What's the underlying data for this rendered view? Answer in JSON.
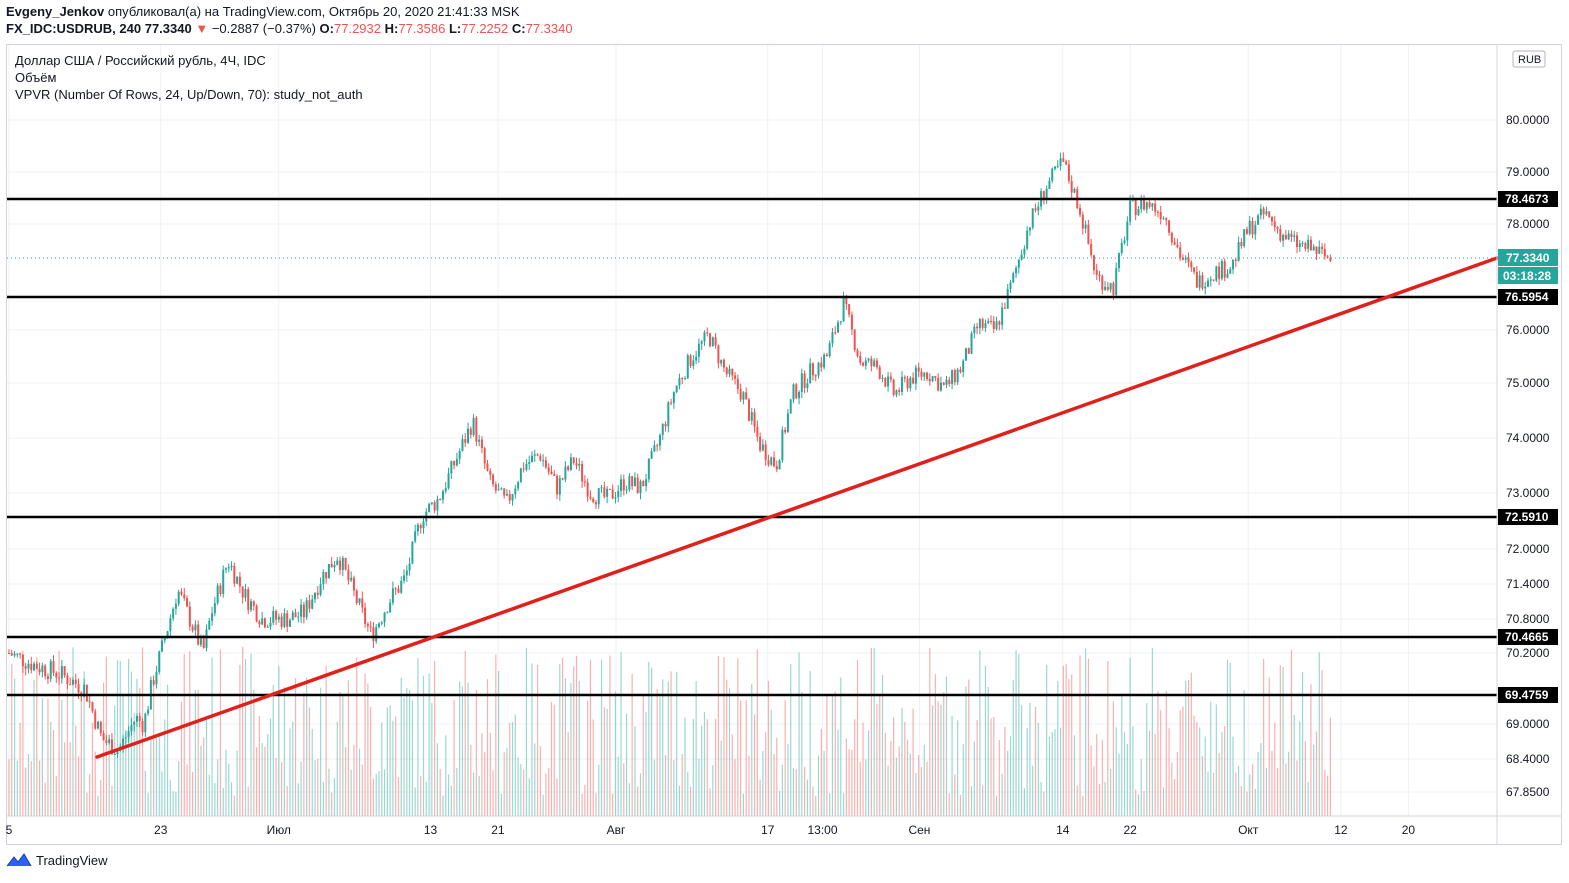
{
  "header": {
    "author": "Evgeny_Jenkov",
    "published": "опубликовал(а) на TradingView.com, Октябрь 20, 2020 21:41:33 MSK"
  },
  "ohlc": {
    "symbol": "FX_IDC:USDRUB, 240",
    "last": "77.3340",
    "change": "−0.2887 (−0.37%)",
    "o_label": "O:",
    "o": "77.2932",
    "h_label": "H:",
    "h": "77.3586",
    "l_label": "L:",
    "l": "77.2252",
    "c_label": "C:",
    "c": "77.3340"
  },
  "legend": {
    "title": "Доллар США / Российский рубль, 4Ч, IDC",
    "volume": "Объём",
    "vpvr": "VPVR (Number Of Rows, 24, Up/Down, 70): study_not_auth"
  },
  "footer": {
    "brand": "TradingView"
  },
  "colors": {
    "up": "#26a69a",
    "down": "#ef5350",
    "trend": "#e0201b",
    "level": "#000000",
    "last_price": "#26a69a"
  },
  "chart_data": {
    "type": "candlestick",
    "currency_badge": "RUB",
    "y_ticks": [
      "80.0000",
      "79.0000",
      "78.0000",
      "76.0000",
      "75.0000",
      "74.0000",
      "73.0000",
      "72.0000",
      "71.4000",
      "70.8000",
      "70.2000",
      "69.0000",
      "68.4000",
      "67.8500"
    ],
    "y_tick_values": [
      80.0,
      79.0,
      78.0,
      76.0,
      75.0,
      74.0,
      73.0,
      72.0,
      71.4,
      70.8,
      70.2,
      69.0,
      68.4,
      67.85
    ],
    "x_ticks": [
      "5",
      "23",
      "Июл",
      "13",
      "21",
      "Авг",
      "17",
      "13:00",
      "Сен",
      "14",
      "22",
      "Окт",
      "12",
      "20"
    ],
    "x_tick_days": [
      0,
      18,
      32,
      50,
      58,
      72,
      90,
      96.5,
      108,
      125,
      133,
      147,
      158,
      166
    ],
    "horizontal_levels": [
      {
        "label": "78.4673",
        "value": 78.4673
      },
      {
        "label": "76.5954",
        "value": 76.5954
      },
      {
        "label": "72.5910",
        "value": 72.591
      },
      {
        "label": "70.4665",
        "value": 70.4665
      },
      {
        "label": "69.4759",
        "value": 69.4759
      }
    ],
    "last_price": {
      "label": "77.3340",
      "value": 77.334,
      "countdown": "03:18:28"
    },
    "trendline": {
      "from": {
        "day": 10,
        "value": 68.5
      },
      "to": {
        "day": 167,
        "value": 77.28
      }
    },
    "price_path": [
      [
        0,
        70.2
      ],
      [
        3,
        70.0
      ],
      [
        6,
        69.85
      ],
      [
        9,
        69.6
      ],
      [
        11,
        68.75
      ],
      [
        13,
        68.55
      ],
      [
        15,
        69.1
      ],
      [
        16,
        69.0
      ],
      [
        17,
        69.7
      ],
      [
        18,
        70.2
      ],
      [
        20,
        71.3
      ],
      [
        22,
        70.6
      ],
      [
        23,
        70.2
      ],
      [
        24,
        70.9
      ],
      [
        26,
        71.8
      ],
      [
        28,
        71.2
      ],
      [
        30,
        70.8
      ],
      [
        33,
        70.8
      ],
      [
        35,
        70.9
      ],
      [
        37,
        71.5
      ],
      [
        39,
        71.9
      ],
      [
        41,
        71.2
      ],
      [
        43,
        70.5
      ],
      [
        45,
        71.1
      ],
      [
        47,
        71.5
      ],
      [
        49,
        72.6
      ],
      [
        51,
        72.9
      ],
      [
        53,
        73.6
      ],
      [
        55,
        74.3
      ],
      [
        57,
        73.2
      ],
      [
        59,
        72.8
      ],
      [
        61,
        73.5
      ],
      [
        63,
        73.7
      ],
      [
        65,
        73.1
      ],
      [
        67,
        73.6
      ],
      [
        69,
        73.0
      ],
      [
        71,
        72.9
      ],
      [
        73,
        73.2
      ],
      [
        75,
        73.1
      ],
      [
        77,
        73.9
      ],
      [
        79,
        74.9
      ],
      [
        81,
        75.5
      ],
      [
        83,
        75.9
      ],
      [
        85,
        75.2
      ],
      [
        87,
        74.8
      ],
      [
        89,
        73.9
      ],
      [
        91,
        73.5
      ],
      [
        93,
        74.8
      ],
      [
        95,
        75.2
      ],
      [
        97,
        75.5
      ],
      [
        99,
        76.5
      ],
      [
        101,
        75.4
      ],
      [
        103,
        75.3
      ],
      [
        105,
        74.8
      ],
      [
        107,
        75.1
      ],
      [
        109,
        75.2
      ],
      [
        111,
        74.9
      ],
      [
        113,
        75.3
      ],
      [
        115,
        76.1
      ],
      [
        117,
        76.0
      ],
      [
        119,
        76.9
      ],
      [
        121,
        78.0
      ],
      [
        123,
        78.7
      ],
      [
        125,
        79.2
      ],
      [
        127,
        78.3
      ],
      [
        129,
        77.0
      ],
      [
        131,
        76.8
      ],
      [
        133,
        78.3
      ],
      [
        135,
        78.4
      ],
      [
        137,
        78.2
      ],
      [
        139,
        77.4
      ],
      [
        141,
        76.9
      ],
      [
        143,
        77.1
      ],
      [
        145,
        77.2
      ],
      [
        147,
        77.9
      ],
      [
        149,
        78.2
      ],
      [
        151,
        77.8
      ],
      [
        153,
        77.6
      ],
      [
        155,
        77.5
      ],
      [
        157,
        77.3
      ]
    ]
  }
}
